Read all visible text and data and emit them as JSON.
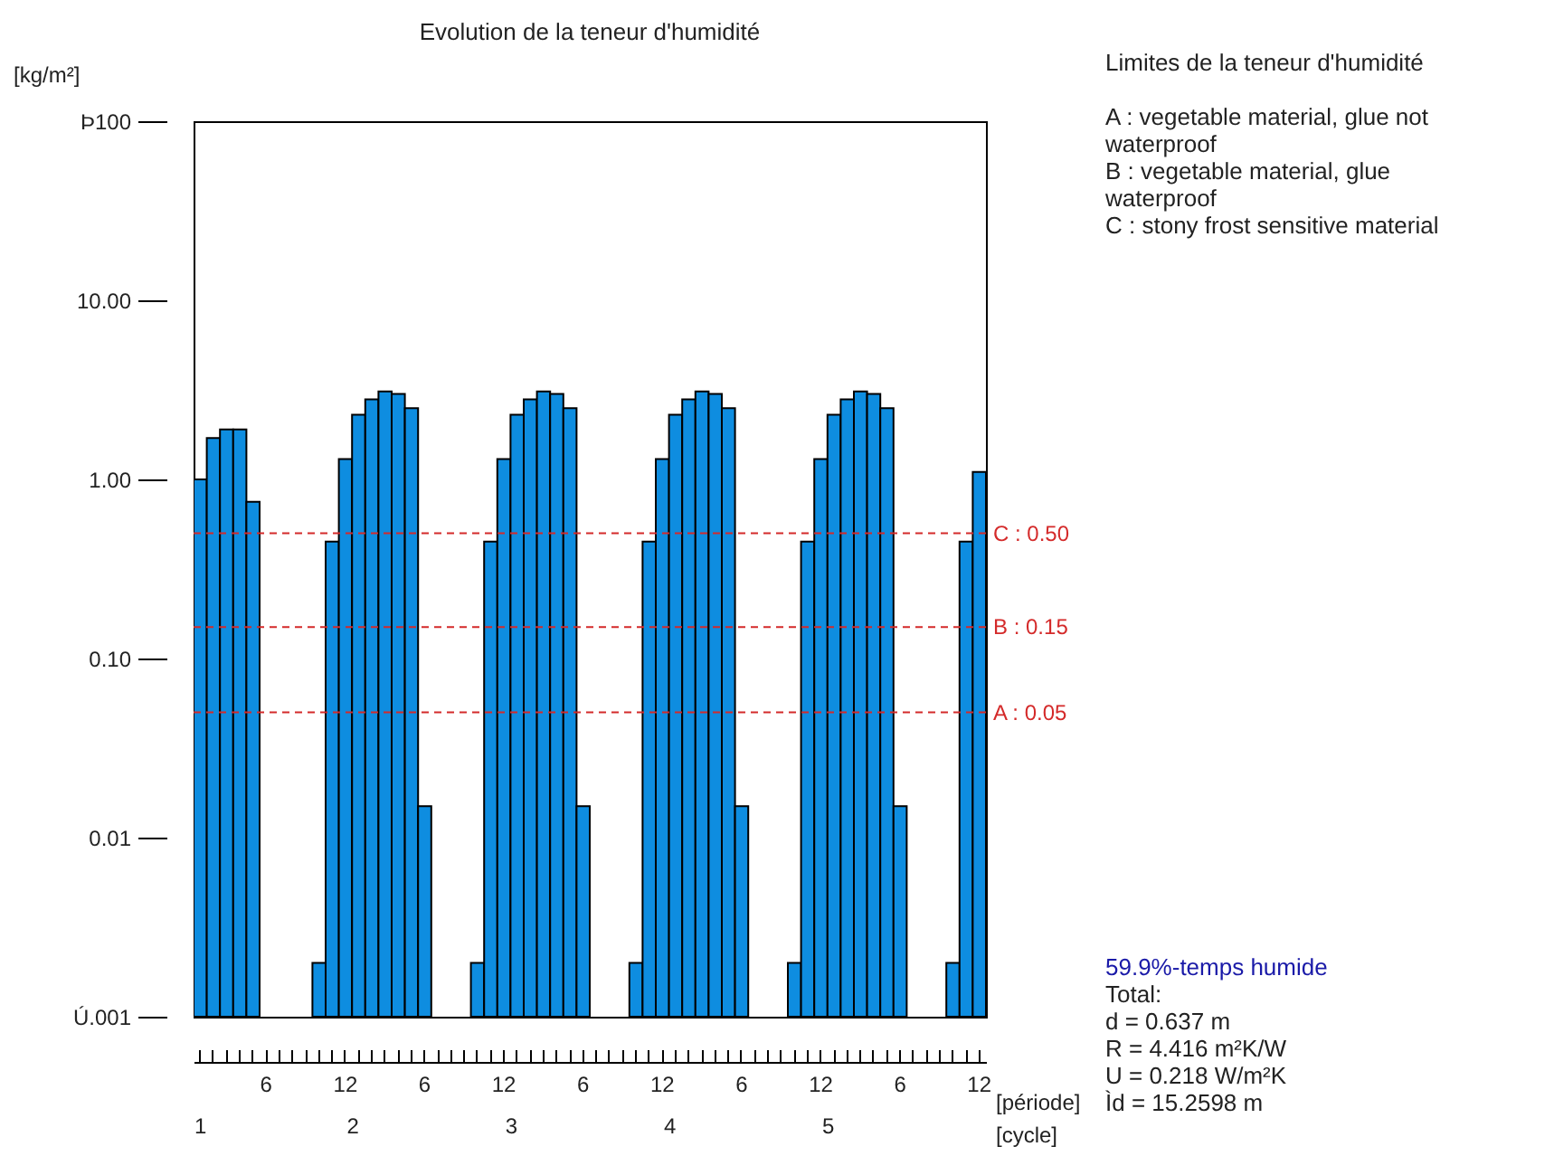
{
  "chart_data": {
    "type": "bar",
    "title": "Evolution de la teneur d'humidité",
    "ylabel": "[kg/m²]",
    "xlabel": "[période]",
    "x2label": "[cycle]",
    "categories": [
      null,
      null,
      null,
      null,
      null,
      "6",
      null,
      null,
      null,
      null,
      null,
      "12",
      null,
      null,
      null,
      null,
      null,
      "6",
      null,
      null,
      null,
      null,
      null,
      "12",
      null,
      null,
      null,
      null,
      null,
      "6",
      null,
      null,
      null,
      null,
      null,
      "12",
      null,
      null,
      null,
      null,
      null,
      "6",
      null,
      null,
      null,
      null,
      null,
      "12",
      null,
      null,
      null,
      null,
      null,
      "6",
      null,
      null,
      null,
      null,
      null,
      "12"
    ],
    "series": [
      {
        "color": "#0e8de0",
        "values": [
          1.0,
          1.7,
          1.9,
          1.9,
          0.75,
          null,
          null,
          null,
          null,
          0.002,
          0.45,
          1.3,
          2.3,
          2.8,
          3.1,
          3.0,
          2.5,
          0.015,
          null,
          null,
          null,
          0.002,
          0.45,
          1.3,
          2.3,
          2.8,
          3.1,
          3.0,
          2.5,
          0.015,
          null,
          null,
          null,
          0.002,
          0.45,
          1.3,
          2.3,
          2.8,
          3.1,
          3.0,
          2.5,
          0.015,
          null,
          null,
          null,
          0.002,
          0.45,
          1.3,
          2.3,
          2.8,
          3.1,
          3.0,
          2.5,
          0.015,
          null,
          null,
          null,
          0.002,
          0.45,
          1.1
        ]
      }
    ],
    "x2lim": [
      1,
      6
    ],
    "x2ticks": [
      1,
      2,
      3,
      4,
      5
    ],
    "ylim": [
      0.001,
      100
    ],
    "log": "y",
    "yticks": [
      {
        "value": 0.001,
        "label": "Ú.001"
      },
      {
        "value": 0.01,
        "label": "0.01"
      },
      {
        "value": 0.1,
        "label": "0.10"
      },
      {
        "value": 1,
        "label": "1.00"
      },
      {
        "value": 10,
        "label": "10.00"
      },
      {
        "value": 100,
        "label": "Þ100"
      }
    ],
    "ref_lines": [
      {
        "axis": "y",
        "value": 0.5,
        "label": "C : 0.50",
        "color": "#d42a2a",
        "line_style": "dashed"
      },
      {
        "axis": "y",
        "value": 0.15,
        "label": "B : 0.15",
        "color": "#d42a2a",
        "line_style": "dashed"
      },
      {
        "axis": "y",
        "value": 0.05,
        "label": "A : 0.05",
        "color": "#d42a2a",
        "line_style": "dashed"
      }
    ],
    "annotations": [
      "Limites de la teneur d'humidité",
      "A : vegetable material, glue not waterproof",
      "B : vegetable material, glue waterproof",
      "C : stony frost sensitive material",
      "59.9%-temps humide",
      "Total:",
      "d  = 0.637 m",
      "R  = 4.416 m²K/W",
      "U  = 0.218 W/m²K",
      "Ìd = 15.2598 m"
    ]
  }
}
